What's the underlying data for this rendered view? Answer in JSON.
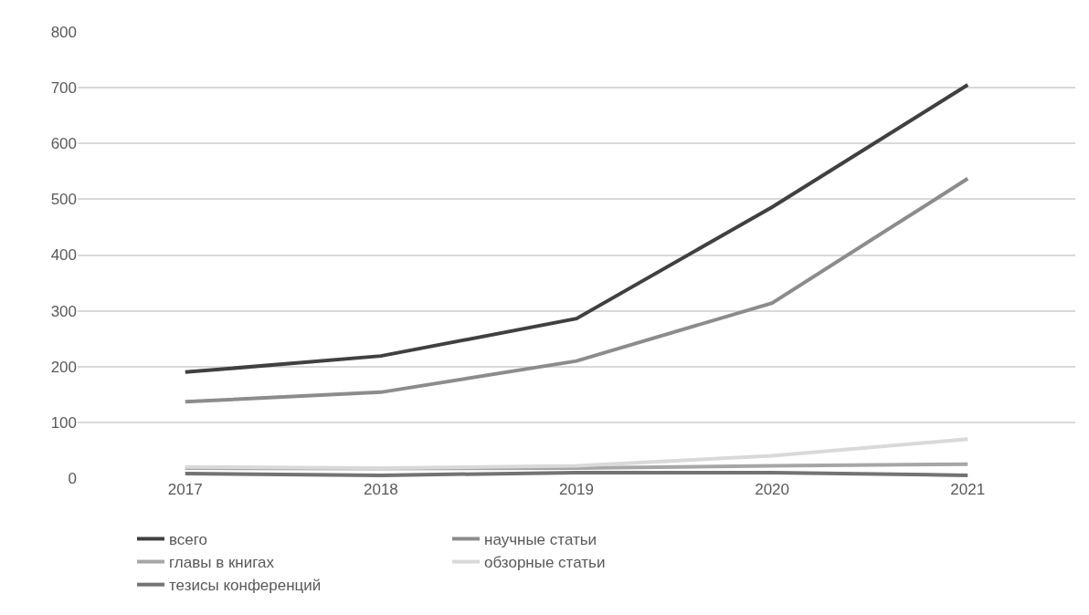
{
  "chart_data": {
    "type": "line",
    "categories": [
      "2017",
      "2018",
      "2019",
      "2020",
      "2021"
    ],
    "series": [
      {
        "name": "всего",
        "color": "#404040",
        "values": [
          190,
          219,
          286,
          486,
          705
        ]
      },
      {
        "name": "научные статьи",
        "color": "#8c8c8c",
        "values": [
          137,
          154,
          210,
          314,
          537
        ]
      },
      {
        "name": "главы в книгах",
        "color": "#a6a6a6",
        "values": [
          18,
          17,
          18,
          22,
          25
        ]
      },
      {
        "name": "обзорные статьи",
        "color": "#d9d9d9",
        "values": [
          20,
          18,
          22,
          40,
          70
        ]
      },
      {
        "name": "тезисы конференций",
        "color": "#737373",
        "values": [
          8,
          5,
          10,
          10,
          5
        ]
      }
    ],
    "ylim": [
      0,
      800
    ],
    "yticks": [
      0,
      100,
      200,
      300,
      400,
      500,
      600,
      700,
      800
    ],
    "grid": "y",
    "legend": "bottom",
    "marker": "none",
    "line_style": "solid"
  }
}
